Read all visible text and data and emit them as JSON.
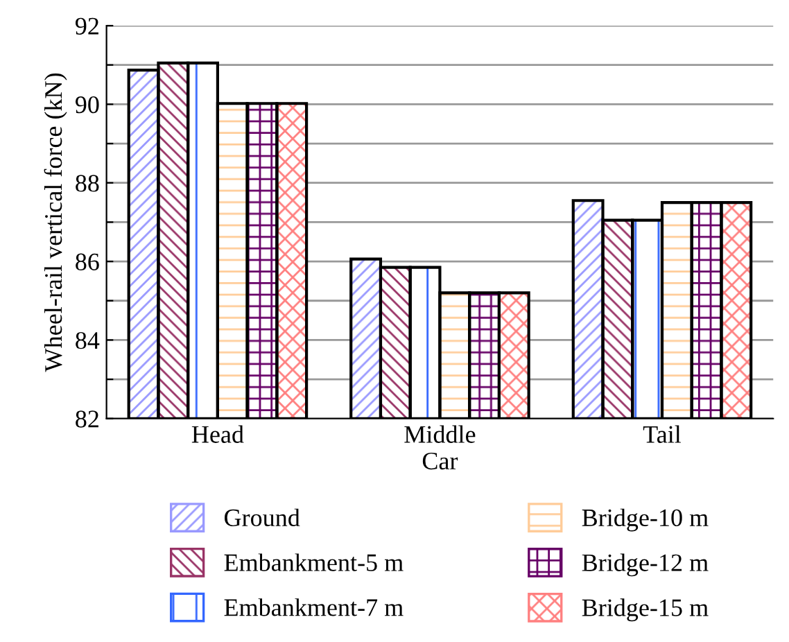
{
  "chart_data": {
    "type": "bar",
    "xlabel": "Car",
    "ylabel": "Wheel-rail vertical force (kN)",
    "categories": [
      "Head",
      "Middle",
      "Tail"
    ],
    "series": [
      {
        "name": "Ground",
        "color": "#9999ff",
        "values": [
          90.87,
          86.06,
          87.55
        ]
      },
      {
        "name": "Embankment-5 m",
        "color": "#993366",
        "values": [
          91.05,
          85.85,
          87.05
        ]
      },
      {
        "name": "Embankment-7 m",
        "color": "#3366ff",
        "values": [
          91.05,
          85.85,
          87.05
        ]
      },
      {
        "name": "Bridge-10 m",
        "color": "#ffcc99",
        "values": [
          90.02,
          85.2,
          87.5
        ]
      },
      {
        "name": "Bridge-12 m",
        "color": "#660066",
        "values": [
          90.02,
          85.2,
          87.5
        ]
      },
      {
        "name": "Bridge-15 m",
        "color": "#ff8080",
        "values": [
          90.02,
          85.2,
          87.5
        ]
      }
    ],
    "ylim": [
      82,
      92
    ],
    "yticks": [
      82,
      {
        "value": 83,
        "label": null
      },
      84,
      {
        "value": 85,
        "label": null
      },
      86,
      {
        "value": 87,
        "label": null
      },
      88,
      {
        "value": 89,
        "label": null
      },
      90,
      {
        "value": 91,
        "label": null
      },
      92
    ],
    "grid": "y",
    "legend": "bottom"
  }
}
